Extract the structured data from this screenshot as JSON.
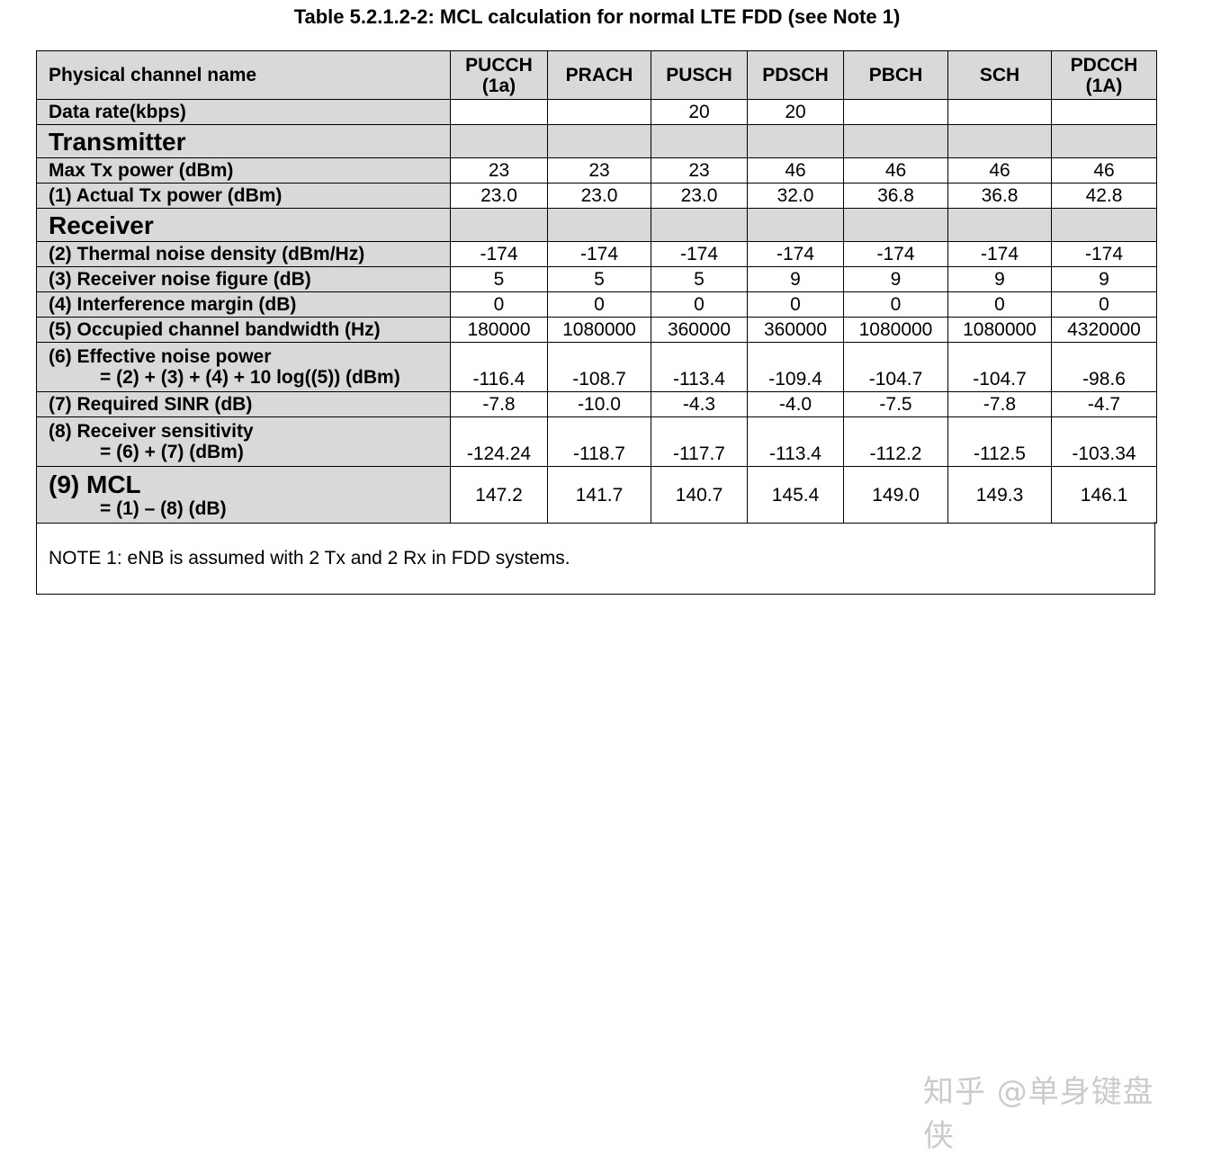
{
  "title": "Table 5.2.1.2-2: MCL calculation for normal LTE FDD (see Note 1)",
  "header": {
    "label": "Physical channel name",
    "columns": [
      [
        "PUCCH",
        "(1a)"
      ],
      [
        "PRACH"
      ],
      [
        "PUSCH"
      ],
      [
        "PDSCH"
      ],
      [
        "PBCH"
      ],
      [
        "SCH"
      ],
      [
        "PDCCH",
        "(1A)"
      ]
    ]
  },
  "rows": [
    {
      "type": "data",
      "label": [
        "Data rate(kbps)"
      ],
      "values": [
        "",
        "",
        "20",
        "20",
        "",
        "",
        ""
      ]
    },
    {
      "type": "section",
      "label": [
        "Transmitter"
      ],
      "values": [
        "",
        "",
        "",
        "",
        "",
        "",
        ""
      ]
    },
    {
      "type": "data",
      "label": [
        "Max Tx power  (dBm)"
      ],
      "values": [
        "23",
        "23",
        "23",
        "46",
        "46",
        "46",
        "46"
      ]
    },
    {
      "type": "data",
      "label": [
        "(1) Actual Tx power (dBm)"
      ],
      "values": [
        "23.0",
        "23.0",
        "23.0",
        "32.0",
        "36.8",
        "36.8",
        "42.8"
      ]
    },
    {
      "type": "section",
      "label": [
        "Receiver"
      ],
      "values": [
        "",
        "",
        "",
        "",
        "",
        "",
        ""
      ]
    },
    {
      "type": "data",
      "label": [
        "(2) Thermal noise density (dBm/Hz)"
      ],
      "values": [
        "-174",
        "-174",
        "-174",
        "-174",
        "-174",
        "-174",
        "-174"
      ]
    },
    {
      "type": "data",
      "label": [
        "(3) Receiver noise figure (dB)"
      ],
      "values": [
        "5",
        "5",
        "5",
        "9",
        "9",
        "9",
        "9"
      ]
    },
    {
      "type": "data",
      "label": [
        "(4) Interference margin (dB)"
      ],
      "values": [
        "0",
        "0",
        "0",
        "0",
        "0",
        "0",
        "0"
      ]
    },
    {
      "type": "data",
      "label": [
        "(5) Occupied channel bandwidth (Hz)"
      ],
      "values": [
        "180000",
        "1080000",
        "360000",
        "360000",
        "1080000",
        "1080000",
        "4320000"
      ]
    },
    {
      "type": "two",
      "label": [
        "(6) Effective noise power",
        "= (2) + (3) + (4) + 10 log((5))  (dBm)"
      ],
      "values": [
        "-116.4",
        "-108.7",
        "-113.4",
        "-109.4",
        "-104.7",
        "-104.7",
        "-98.6"
      ]
    },
    {
      "type": "data",
      "label": [
        "(7) Required SINR (dB)"
      ],
      "values": [
        "-7.8",
        "-10.0",
        "-4.3",
        "-4.0",
        "-7.5",
        "-7.8",
        "-4.7"
      ]
    },
    {
      "type": "two",
      "label": [
        "(8) Receiver sensitivity",
        "= (6) + (7) (dBm)"
      ],
      "values": [
        "-124.24",
        "-118.7",
        "-117.7",
        "-113.4",
        "-112.2",
        "-112.5",
        "-103.34"
      ]
    },
    {
      "type": "mcl",
      "label": [
        "(9) MCL",
        "= (1) – (8) (dB)"
      ],
      "values": [
        "147.2",
        "141.7",
        "140.7",
        "145.4",
        "149.0",
        "149.3",
        "146.1"
      ]
    }
  ],
  "note": "NOTE 1:   eNB is assumed with 2 Tx and 2 Rx in FDD systems.",
  "watermark": "知乎 @单身键盘侠"
}
